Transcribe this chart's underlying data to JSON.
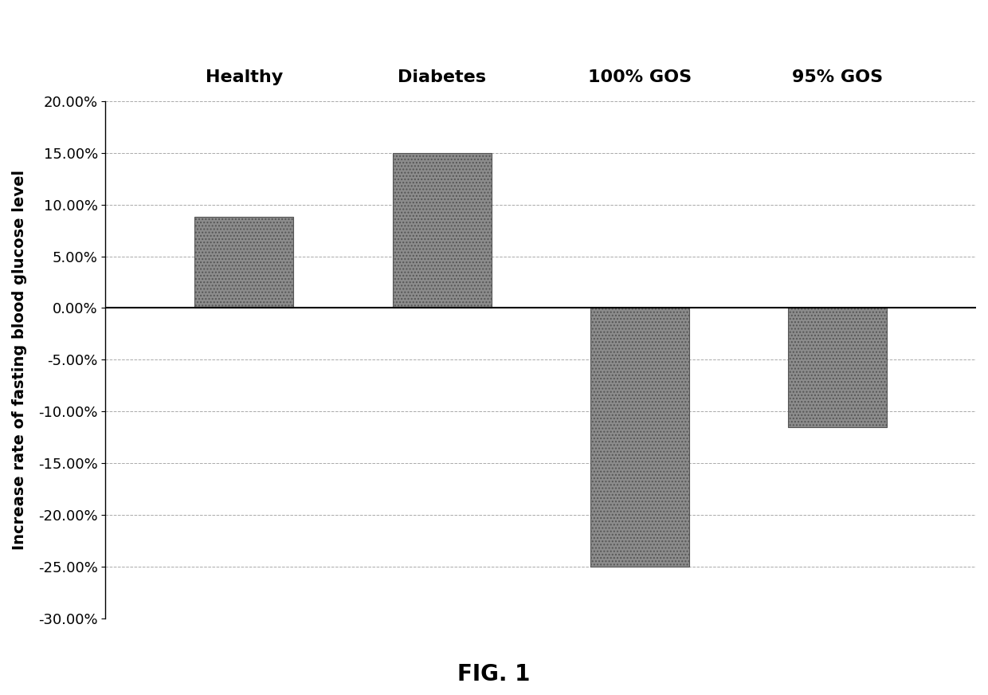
{
  "categories": [
    "Healthy",
    "Diabetes",
    "100% GOS",
    "95% GOS"
  ],
  "values": [
    0.088,
    0.15,
    -0.2495,
    -0.115
  ],
  "bar_color": "#8c8c8c",
  "bar_hatch": "....",
  "ylabel": "Increase rate of fasting blood glucose level",
  "ylim": [
    -0.3,
    0.2
  ],
  "yticks": [
    -0.3,
    -0.25,
    -0.2,
    -0.15,
    -0.1,
    -0.05,
    0.0,
    0.05,
    0.1,
    0.15,
    0.2
  ],
  "ytick_labels": [
    "-30.00%",
    "-25.00%",
    "-20.00%",
    "-15.00%",
    "-10.00%",
    "-5.00%",
    "0.00%",
    "5.00%",
    "10.00%",
    "15.00%",
    "20.00%"
  ],
  "caption": "FIG. 1",
  "caption_fontsize": 20,
  "label_fontsize": 16,
  "ylabel_fontsize": 14,
  "ytick_fontsize": 13,
  "bar_width": 0.5,
  "grid_color": "#aaaaaa",
  "background_color": "#ffffff",
  "fig_width": 12.4,
  "fig_height": 8.72
}
